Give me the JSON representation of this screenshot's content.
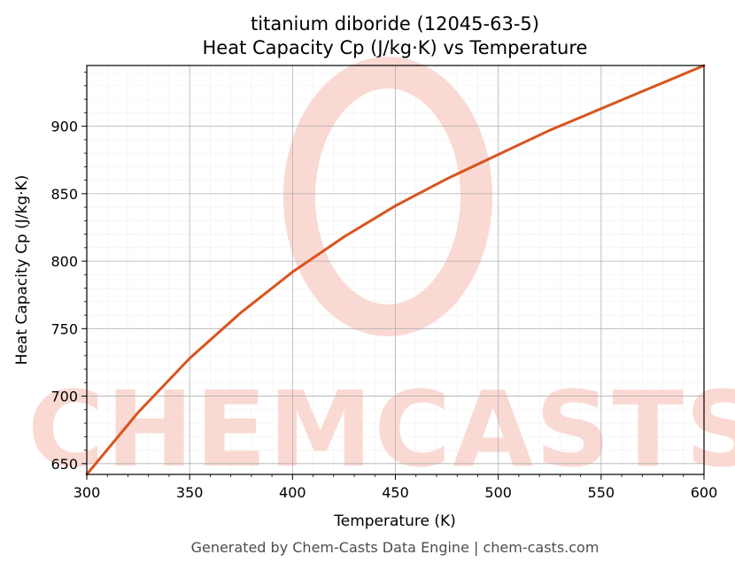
{
  "colors": {
    "series": "#d9541e",
    "grid_major": "#b0b0b0",
    "grid_minor": "#e2e2e2",
    "watermark": "#fbd9d3"
  },
  "watermark": {
    "text": "CHEMCASTS"
  },
  "footer": {
    "text": "Generated by Chem-Casts Data Engine | chem-casts.com"
  },
  "chart_data": {
    "type": "line",
    "title": "titanium diboride (12045-63-5)",
    "subtitle": "Heat Capacity Cp (J/kg·K) vs Temperature",
    "xlabel": "Temperature (K)",
    "ylabel": "Heat Capacity Cp (J/kg·K)",
    "xlim": [
      300,
      600
    ],
    "ylim": [
      642,
      945
    ],
    "x_ticks": [
      300,
      350,
      400,
      450,
      500,
      550,
      600
    ],
    "y_ticks": [
      650,
      700,
      750,
      800,
      850,
      900
    ],
    "grid": true,
    "series": [
      {
        "x": [
          300,
          325,
          350,
          375,
          400,
          425,
          450,
          475,
          500,
          525,
          550,
          575,
          600
        ],
        "values": [
          642,
          688,
          728,
          762,
          792,
          818,
          841,
          861,
          879,
          897,
          913,
          929,
          945
        ]
      }
    ]
  }
}
